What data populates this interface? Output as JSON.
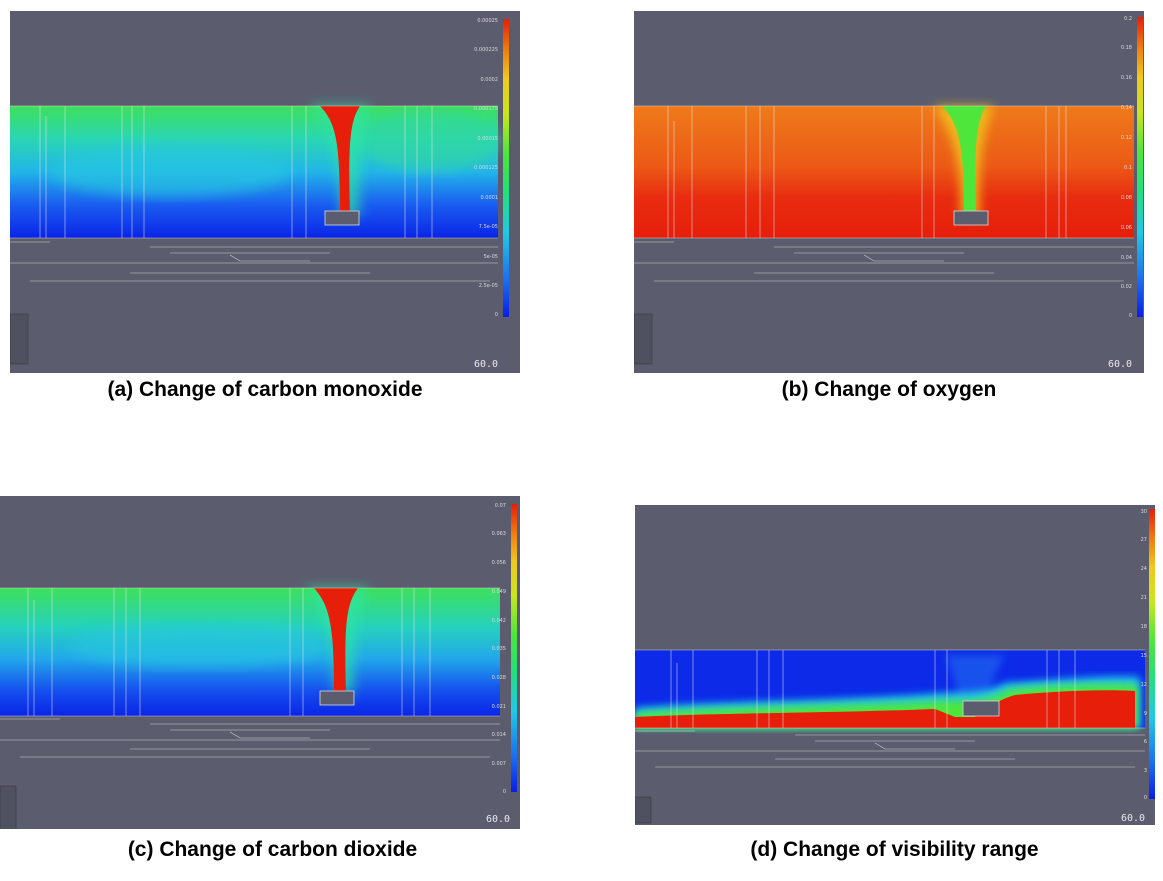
{
  "panels": [
    {
      "id": "a",
      "caption": "(a) Change of carbon monoxide",
      "time_label": "60.0",
      "colorbar_ticks": [
        "0.00025",
        "0.000225",
        "0.0002",
        "0.000175",
        "0.00015",
        "0.000125",
        "0.0001",
        "7.5e-05",
        "5e-05",
        "2.5e-05",
        "0"
      ]
    },
    {
      "id": "b",
      "caption": "(b) Change of oxygen",
      "time_label": "60.0",
      "colorbar_ticks": [
        "0.2",
        "0.18",
        "0.16",
        "0.14",
        "0.12",
        "0.1",
        "0.08",
        "0.06",
        "0.04",
        "0.02",
        "0"
      ]
    },
    {
      "id": "c",
      "caption": "(c) Change of carbon dioxide",
      "time_label": "60.0",
      "colorbar_ticks": [
        "0.07",
        "0.063",
        "0.056",
        "0.049",
        "0.042",
        "0.035",
        "0.028",
        "0.021",
        "0.014",
        "0.007",
        "0"
      ]
    },
    {
      "id": "d",
      "caption": "(d) Change of visibility range",
      "time_label": "60.0",
      "colorbar_ticks": [
        "30",
        "27",
        "24",
        "21",
        "18",
        "15",
        "12",
        "9",
        "6",
        "3",
        "0"
      ]
    }
  ],
  "colors": {
    "background": "#5b5d6e",
    "colormap": [
      "#0a1ee6",
      "#1a6cf0",
      "#22c8e6",
      "#22e07a",
      "#4ee63a",
      "#c8e61e",
      "#f0c81e",
      "#f07a10",
      "#e61e0a"
    ]
  }
}
